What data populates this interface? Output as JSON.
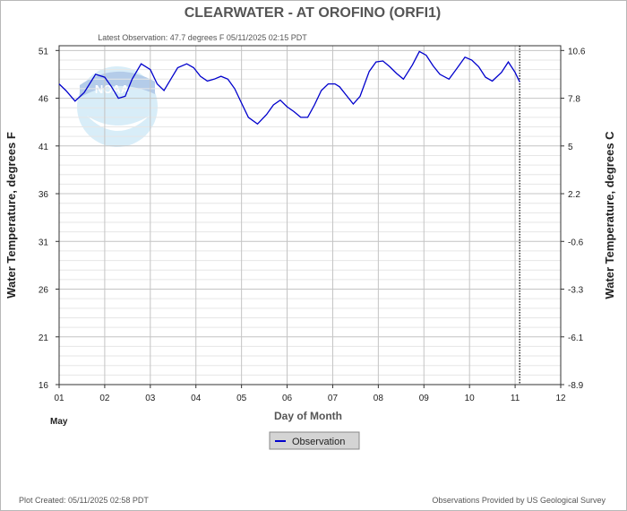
{
  "chart_data": {
    "type": "line",
    "title": "CLEARWATER - AT OROFINO  (ORFI1)",
    "subtitle": "Latest Observation: 47.7 degrees F 05/11/2025 02:15 PDT",
    "xlabel": "Day of Month",
    "xlabel_month": "May",
    "ylabel_left": "Water Temperature, degrees F",
    "ylabel_right": "Water Temperature, degrees C",
    "xlim": [
      1,
      12
    ],
    "ylim": [
      16,
      51.5
    ],
    "x_ticks": [
      "01",
      "02",
      "03",
      "04",
      "05",
      "06",
      "07",
      "08",
      "09",
      "10",
      "11",
      "12"
    ],
    "y_ticks_left": [
      "16",
      "21",
      "26",
      "31",
      "36",
      "41",
      "46",
      "51"
    ],
    "y_ticks_right": [
      "-8.9",
      "-6.1",
      "-3.3",
      "-0.6",
      "2.2",
      "5",
      "7.8",
      "10.6"
    ],
    "latest_obs_x": 11.1,
    "grid": true,
    "legend": "bottom-center",
    "series": [
      {
        "name": "Observation",
        "color": "#0000cc",
        "x": [
          1.0,
          1.15,
          1.35,
          1.55,
          1.8,
          2.0,
          2.15,
          2.3,
          2.45,
          2.6,
          2.8,
          3.0,
          3.15,
          3.3,
          3.45,
          3.6,
          3.8,
          3.95,
          4.1,
          4.25,
          4.4,
          4.55,
          4.7,
          4.85,
          5.0,
          5.15,
          5.35,
          5.55,
          5.7,
          5.85,
          6.0,
          6.15,
          6.3,
          6.45,
          6.6,
          6.75,
          6.9,
          7.05,
          7.15,
          7.3,
          7.45,
          7.6,
          7.8,
          7.95,
          8.1,
          8.25,
          8.4,
          8.55,
          8.75,
          8.9,
          9.05,
          9.2,
          9.35,
          9.55,
          9.75,
          9.9,
          10.05,
          10.2,
          10.35,
          10.5,
          10.7,
          10.85,
          11.0,
          11.1
        ],
        "values": [
          47.5,
          46.8,
          45.7,
          46.6,
          48.5,
          48.2,
          47.2,
          46.0,
          46.2,
          48.0,
          49.6,
          49.0,
          47.5,
          46.8,
          48.0,
          49.2,
          49.6,
          49.2,
          48.3,
          47.8,
          48.0,
          48.3,
          48.0,
          47.0,
          45.5,
          44.0,
          43.3,
          44.3,
          45.3,
          45.8,
          45.1,
          44.6,
          44.0,
          44.0,
          45.3,
          46.8,
          47.5,
          47.5,
          47.2,
          46.3,
          45.4,
          46.2,
          48.8,
          49.8,
          49.9,
          49.3,
          48.6,
          48.0,
          49.5,
          50.9,
          50.5,
          49.4,
          48.5,
          48.0,
          49.3,
          50.3,
          50.0,
          49.3,
          48.2,
          47.8,
          48.7,
          49.8,
          48.7,
          47.7
        ]
      }
    ]
  },
  "footer": {
    "created": "Plot Created: 05/11/2025 02:58 PDT",
    "provider": "Observations Provided by US Geological Survey"
  },
  "logo": {
    "text": "NOAA"
  }
}
